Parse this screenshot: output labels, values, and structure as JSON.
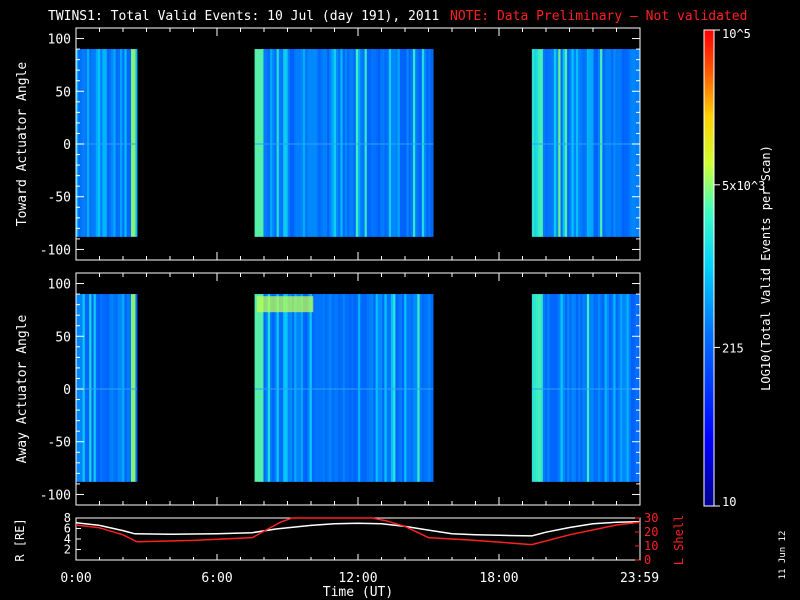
{
  "header": {
    "title": "TWINS1: Total Valid Events: 10 Jul (day 191), 2011",
    "note": "NOTE: Data Preliminary – Not validated"
  },
  "footer": {
    "date_stamp": "11 Jun 12"
  },
  "colors": {
    "background": "#000000",
    "axes": "#ffffff",
    "note": "#ff2020",
    "lshell": "#ff2020",
    "radius": "#ffffff"
  },
  "chart_data": [
    {
      "type": "heatmap",
      "ylabel": "Toward Actuator Angle",
      "xlim": [
        0,
        24
      ],
      "ylim": [
        -110,
        110
      ],
      "yticks": [
        100,
        50,
        0,
        -50,
        -100
      ],
      "data_yrange": [
        -88,
        90
      ],
      "coverage_hours": [
        [
          0,
          2.6
        ],
        [
          7.6,
          15.2
        ],
        [
          19.4,
          24
        ]
      ]
    },
    {
      "type": "heatmap",
      "ylabel": "Away Actuator Angle",
      "xlim": [
        0,
        24
      ],
      "ylim": [
        -110,
        110
      ],
      "yticks": [
        100,
        50,
        0,
        -50,
        -100
      ],
      "data_yrange": [
        -88,
        90
      ],
      "coverage_hours": [
        [
          0,
          2.6
        ],
        [
          7.6,
          15.2
        ],
        [
          19.4,
          24
        ]
      ]
    },
    {
      "type": "colorbar",
      "label": "LOG10(Total Valid Events per Scan)",
      "scale": "log",
      "range": [
        10,
        100000
      ],
      "ticks": [
        {
          "value": 100000,
          "label": "10^5"
        },
        {
          "value": 5000,
          "label": "5x10^3"
        },
        {
          "value": 215,
          "label": "215"
        },
        {
          "value": 10,
          "label": "10"
        }
      ]
    },
    {
      "type": "line",
      "xlabel": "Time (UT)",
      "xticks": [
        "0:00",
        "6:00",
        "12:00",
        "18:00",
        "23:59"
      ],
      "xtick_hours": [
        0,
        6,
        12,
        18,
        23.98
      ],
      "ylabel_left": "R [RE]",
      "ylim_left": [
        0,
        8
      ],
      "yticks_left": [
        2,
        4,
        6,
        8
      ],
      "ylabel_right": "L Shell",
      "ylim_right": [
        0,
        30
      ],
      "yticks_right": [
        10,
        20,
        30
      ],
      "series": [
        {
          "axis": "left",
          "x": [
            0,
            1,
            2,
            2.5,
            4,
            6,
            7.5,
            8.5,
            10,
            11,
            12,
            13,
            14,
            15,
            16,
            17,
            18,
            19.4,
            20,
            21,
            22,
            23,
            24
          ],
          "y": [
            7.1,
            6.6,
            5.6,
            5.0,
            4.9,
            5.0,
            5.2,
            5.9,
            6.6,
            6.9,
            7.0,
            6.9,
            6.4,
            5.7,
            5.0,
            4.8,
            4.7,
            4.6,
            5.3,
            6.2,
            6.9,
            7.2,
            7.3
          ]
        },
        {
          "axis": "right",
          "x": [
            0,
            1,
            2,
            2.6,
            5,
            7.5,
            8.7,
            9.2,
            12.6,
            13.2,
            14,
            15,
            17,
            19.4,
            21,
            23,
            24
          ],
          "y": [
            25,
            23,
            18,
            13,
            14,
            16,
            27,
            32,
            32,
            28,
            24,
            16,
            14,
            11,
            18,
            25,
            27
          ]
        }
      ]
    }
  ]
}
